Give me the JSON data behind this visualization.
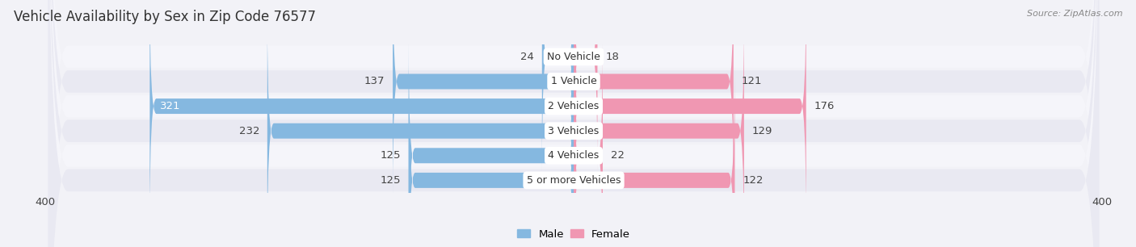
{
  "title": "Vehicle Availability by Sex in Zip Code 76577",
  "source": "Source: ZipAtlas.com",
  "categories": [
    "No Vehicle",
    "1 Vehicle",
    "2 Vehicles",
    "3 Vehicles",
    "4 Vehicles",
    "5 or more Vehicles"
  ],
  "male_values": [
    24,
    137,
    321,
    232,
    125,
    125
  ],
  "female_values": [
    18,
    121,
    176,
    129,
    22,
    122
  ],
  "male_color": "#85b8e0",
  "female_color": "#f097b2",
  "male_label": "Male",
  "female_label": "Female",
  "xlim": 400,
  "background_color": "#f2f2f7",
  "row_bg_color": "#ffffff",
  "row_alt_color": "#e8e8f0",
  "title_fontsize": 12,
  "source_fontsize": 8,
  "bar_height": 0.62,
  "label_fontsize": 9.5,
  "category_fontsize": 9
}
